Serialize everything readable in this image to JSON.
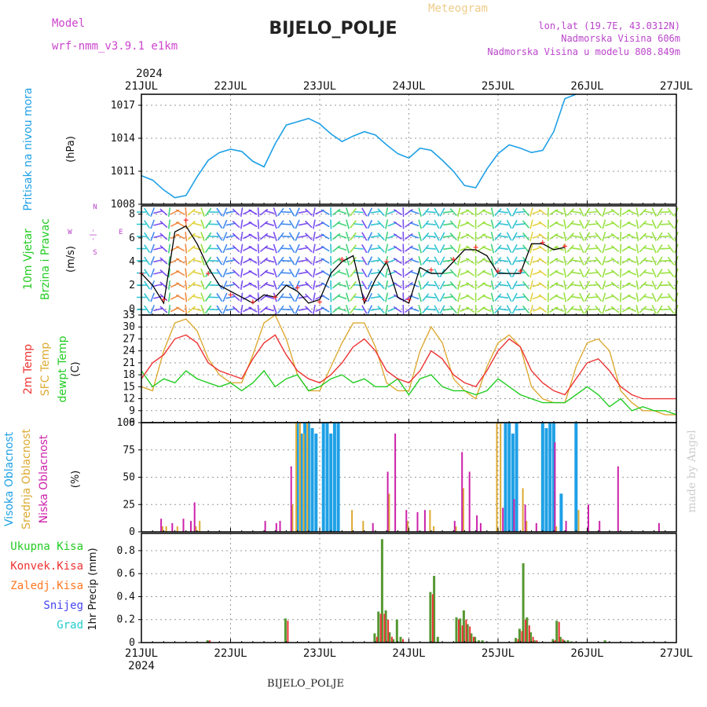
{
  "header": {
    "title": "BIJELO_POLJE",
    "subtitle": "Meteogram",
    "model_label": "Model",
    "model_name": "wrf-nmm_v3.9.1  e1km",
    "lonlat": "lon,lat (19.7E, 43.0312N)",
    "elevation": "Nadmorska Visina 606m",
    "model_elevation": "Nadmorska Visina u modelu 808.849m",
    "year_top": "2024",
    "year_bottom": "2024",
    "footer_station": "BIJELO_POLJE",
    "watermark": "made by Angel"
  },
  "colors": {
    "pressure": "#1ea0e6",
    "wind_speed": "#000000",
    "gust": "#ff3030",
    "temp2m": "#ee3333",
    "sfc_temp": "#ddaa33",
    "dewpt": "#22cc22",
    "high_cloud": "#1ea0e6",
    "mid_cloud": "#ddaa33",
    "low_cloud": "#cc22aa",
    "total_precip": "#559933",
    "convective_precip": "#ee3333",
    "freezing_precip": "#ff7722",
    "snow": "#4444ee",
    "graupel": "#22cccc",
    "label_model": "#cc44cc",
    "label_meta": "#bb44cc"
  },
  "chart_data": [
    {
      "type": "line",
      "panel": "pressure",
      "y_title": "Pritisak na nivou mora",
      "ylabel": "(hPa)",
      "ylim": [
        1008,
        1018
      ],
      "yticks": [
        "1008",
        "1011",
        "1014",
        "1017"
      ],
      "xlim": [
        0,
        144
      ],
      "x_tick_labels": [
        "21JUL",
        "22JUL",
        "23JUL",
        "24JUL",
        "25JUL",
        "26JUL",
        "27JUL"
      ],
      "grid": true,
      "series": [
        {
          "x": [
            0,
            3,
            6,
            9,
            12,
            15,
            18,
            21,
            24,
            27,
            30,
            33,
            36,
            39,
            42,
            45,
            48,
            51,
            54,
            57,
            60,
            63,
            66,
            69,
            72,
            75,
            78,
            81,
            84,
            87,
            90,
            93,
            96,
            99,
            102,
            105,
            108,
            111,
            114,
            117,
            120,
            123,
            126,
            129,
            132,
            135,
            138,
            141,
            144
          ],
          "y": [
            1010.6,
            1010.2,
            1009.3,
            1008.6,
            1008.8,
            1010.5,
            1012.0,
            1012.7,
            1013.0,
            1012.8,
            1011.9,
            1011.4,
            1013.5,
            1015.2,
            1015.5,
            1015.8,
            1015.3,
            1014.4,
            1013.7,
            1014.2,
            1014.6,
            1014.3,
            1013.4,
            1012.6,
            1012.2,
            1013.1,
            1012.9,
            1012.0,
            1011.0,
            1009.7,
            1009.5,
            1011.2,
            1012.6,
            1013.4,
            1013.1,
            1012.7,
            1012.9,
            1014.6,
            1017.6,
            1018.0,
            1018,
            1018,
            1018,
            1018,
            1018,
            1018,
            1018,
            1018,
            1018
          ]
        }
      ]
    },
    {
      "type": "line",
      "panel": "wind",
      "y_title": "10m Vjetar",
      "y_title2": "Brzina i Pravac",
      "ylabel": "(m/s)",
      "ylim": [
        -0.5,
        8.7
      ],
      "yticks": [
        "0",
        "2",
        "4",
        "6",
        "8"
      ],
      "compass": [
        "W",
        "<-",
        "-|-",
        "->",
        "E",
        "N",
        "S"
      ],
      "grid": true,
      "series": [
        {
          "name": "speed",
          "x": [
            0,
            3,
            6,
            9,
            12,
            15,
            18,
            21,
            24,
            27,
            30,
            33,
            36,
            39,
            42,
            45,
            48,
            51,
            54,
            57,
            60,
            63,
            66,
            69,
            72,
            75,
            78,
            81,
            84,
            87,
            90,
            93,
            96,
            99,
            102,
            105,
            108,
            111,
            114
          ],
          "y": [
            3.0,
            2.0,
            0.5,
            6.5,
            7.0,
            5.5,
            3.5,
            2.0,
            1.5,
            1.0,
            0.5,
            1.2,
            1.0,
            2.0,
            1.5,
            0.5,
            0.8,
            3.0,
            4.0,
            4.5,
            0.5,
            2.5,
            4.0,
            1.0,
            0.5,
            3.5,
            3.0,
            3.0,
            4.0,
            5.0,
            5.0,
            4.5,
            3.0,
            3.0,
            3.0,
            5.5,
            5.5,
            5.0,
            5.2
          ]
        },
        {
          "name": "gust",
          "x": [
            0,
            6,
            12,
            18,
            24,
            30,
            36,
            42,
            48,
            54,
            60,
            66,
            72,
            78,
            84,
            90,
            96,
            102,
            108,
            114
          ],
          "y": [
            3.0,
            0.8,
            7.5,
            3.0,
            1.2,
            0.6,
            1.0,
            1.8,
            0.6,
            4.2,
            0.8,
            4.0,
            0.8,
            3.3,
            4.2,
            5.2,
            3.2,
            3.2,
            5.6,
            5.3
          ]
        }
      ]
    },
    {
      "type": "line",
      "panel": "temperature",
      "y_title": "2m Temp",
      "y_title2": "SFC Temp",
      "y_title3": "dewpt Temp",
      "ylabel": "(C)",
      "ylim": [
        6,
        33
      ],
      "yticks": [
        "6",
        "9",
        "12",
        "15",
        "18",
        "21",
        "24",
        "27",
        "30",
        "33"
      ],
      "grid": true,
      "series": [
        {
          "name": "2m Temp",
          "x": [
            0,
            3,
            6,
            9,
            12,
            15,
            18,
            21,
            24,
            27,
            30,
            33,
            36,
            39,
            42,
            45,
            48,
            51,
            54,
            57,
            60,
            63,
            66,
            69,
            72,
            75,
            78,
            81,
            84,
            87,
            90,
            93,
            96,
            99,
            102,
            105,
            108,
            111,
            114,
            117,
            120,
            123,
            126,
            129,
            132,
            135,
            138,
            141,
            144
          ],
          "y": [
            17,
            21,
            23,
            27,
            28,
            26,
            21,
            19,
            18,
            17,
            22,
            26,
            28,
            23,
            19,
            17,
            16,
            18,
            21,
            25,
            27,
            24,
            19,
            17,
            16,
            19,
            24,
            22,
            18,
            16,
            15,
            19,
            24,
            27,
            25,
            19,
            16,
            14,
            13,
            17,
            21,
            22,
            19,
            15,
            13,
            12,
            12,
            12,
            12
          ]
        },
        {
          "name": "SFC Temp",
          "x": [
            0,
            3,
            6,
            9,
            12,
            15,
            18,
            21,
            24,
            27,
            30,
            33,
            36,
            39,
            42,
            45,
            48,
            51,
            54,
            57,
            60,
            63,
            66,
            69,
            72,
            75,
            78,
            81,
            84,
            87,
            90,
            93,
            96,
            99,
            102,
            105,
            108,
            111,
            114,
            117,
            120,
            123,
            126,
            129,
            132,
            135,
            138,
            141,
            144
          ],
          "y": [
            15,
            14,
            24,
            31,
            32,
            29,
            22,
            18,
            16,
            16,
            23,
            31,
            33,
            27,
            18,
            14,
            14,
            20,
            26,
            31,
            31,
            25,
            16,
            14,
            14,
            24,
            30,
            26,
            17,
            14,
            12,
            20,
            26,
            28,
            25,
            15,
            12,
            11,
            11,
            20,
            26,
            27,
            24,
            14,
            11,
            9,
            9,
            8,
            8
          ]
        },
        {
          "name": "dewpt Temp",
          "x": [
            0,
            3,
            6,
            9,
            12,
            15,
            18,
            21,
            24,
            27,
            30,
            33,
            36,
            39,
            42,
            45,
            48,
            51,
            54,
            57,
            60,
            63,
            66,
            69,
            72,
            75,
            78,
            81,
            84,
            87,
            90,
            93,
            96,
            99,
            102,
            105,
            108,
            111,
            114,
            117,
            120,
            123,
            126,
            129,
            132,
            135,
            138,
            141,
            144
          ],
          "y": [
            19,
            15,
            17,
            16,
            19,
            17,
            16,
            15,
            16,
            14,
            16,
            19,
            15,
            17,
            18,
            14,
            15,
            17,
            18,
            16,
            17,
            15,
            15,
            17,
            13,
            17,
            18,
            15,
            14,
            14,
            13,
            14,
            17,
            15,
            13,
            12,
            11,
            11,
            11,
            13,
            15,
            13,
            10,
            12,
            9,
            10,
            9,
            9,
            8
          ]
        }
      ]
    },
    {
      "type": "bar",
      "panel": "clouds",
      "y_title": "Visoka Oblacnost",
      "y_title2": "Srednja Oblacnost",
      "y_title3": "Niska Oblacnost",
      "ylabel": "(%)",
      "ylim": [
        0,
        100
      ],
      "yticks": [
        "0",
        "25",
        "50",
        "75",
        "100"
      ],
      "grid": true,
      "series": [
        {
          "name": "Visoka",
          "x": [
            42,
            43,
            44,
            45,
            46,
            47,
            49,
            50,
            51,
            52,
            53,
            98,
            99,
            100,
            101,
            108,
            109,
            110,
            111,
            113,
            117
          ],
          "values": [
            100,
            90,
            100,
            100,
            95,
            90,
            100,
            100,
            90,
            100,
            100,
            100,
            100,
            90,
            100,
            100,
            95,
            100,
            100,
            35,
            100
          ]
        },
        {
          "name": "Srednja",
          "x": [
            6,
            7,
            10,
            15,
            16,
            41,
            42,
            43,
            44,
            45,
            57,
            60,
            67,
            72,
            78,
            79,
            85,
            87,
            96,
            97,
            103,
            104,
            112,
            118
          ],
          "values": [
            5,
            5,
            5,
            5,
            10,
            25,
            100,
            100,
            90,
            100,
            20,
            10,
            35,
            10,
            20,
            5,
            5,
            40,
            100,
            100,
            40,
            10,
            5,
            20
          ]
        },
        {
          "name": "Niska",
          "x": [
            5,
            8,
            11,
            13,
            14,
            33,
            36,
            37,
            40,
            62,
            66,
            68,
            71,
            74,
            76,
            84,
            86,
            88,
            90,
            91,
            97,
            100,
            103,
            106,
            111,
            114,
            120,
            123,
            128,
            139
          ],
          "values": [
            12,
            8,
            12,
            10,
            27,
            10,
            8,
            10,
            60,
            8,
            55,
            90,
            20,
            18,
            20,
            10,
            73,
            55,
            15,
            8,
            22,
            30,
            25,
            8,
            82,
            10,
            25,
            10,
            60,
            8
          ]
        }
      ]
    },
    {
      "type": "bar",
      "panel": "precip",
      "y_title": "1hr Precip (mm)",
      "legend": [
        "Ukupna Kisa",
        "Konvek.Kisa",
        "Zaledj.Kisa",
        "Snijeg",
        "Grad"
      ],
      "ylim": [
        0,
        0.95
      ],
      "yticks": [
        "0",
        "0.2",
        "0.4",
        "0.6",
        "0.8"
      ],
      "grid": true,
      "series": [
        {
          "name": "Ukupna Kisa",
          "x": [
            18,
            39,
            63,
            64,
            65,
            66,
            67,
            68,
            69,
            70,
            78,
            79,
            80,
            85,
            86,
            87,
            88,
            89,
            90,
            91,
            92,
            101,
            102,
            103,
            104,
            105,
            106,
            111,
            112,
            113,
            114,
            115,
            116,
            125
          ],
          "values": [
            0.02,
            0.21,
            0.08,
            0.27,
            0.9,
            0.28,
            0.09,
            0.03,
            0.2,
            0.05,
            0.44,
            0.58,
            0.05,
            0.22,
            0.21,
            0.28,
            0.16,
            0.08,
            0.05,
            0.02,
            0.02,
            0.04,
            0.12,
            0.69,
            0.22,
            0.09,
            0.02,
            0.03,
            0.19,
            0.05,
            0.02,
            0.02,
            0.01,
            0.02
          ]
        },
        {
          "name": "Konvek.Kisa",
          "x": [
            18,
            39,
            63,
            64,
            65,
            66,
            67,
            70,
            78,
            85,
            86,
            87,
            88,
            89,
            101,
            102,
            103,
            104,
            105,
            106,
            111,
            112,
            113
          ],
          "values": [
            0.02,
            0.19,
            0.05,
            0.25,
            0.25,
            0.2,
            0.05,
            0.03,
            0.42,
            0.2,
            0.15,
            0.2,
            0.14,
            0.05,
            0.03,
            0.1,
            0.2,
            0.15,
            0.05,
            0.02,
            0.02,
            0.18,
            0.03
          ]
        }
      ]
    }
  ]
}
